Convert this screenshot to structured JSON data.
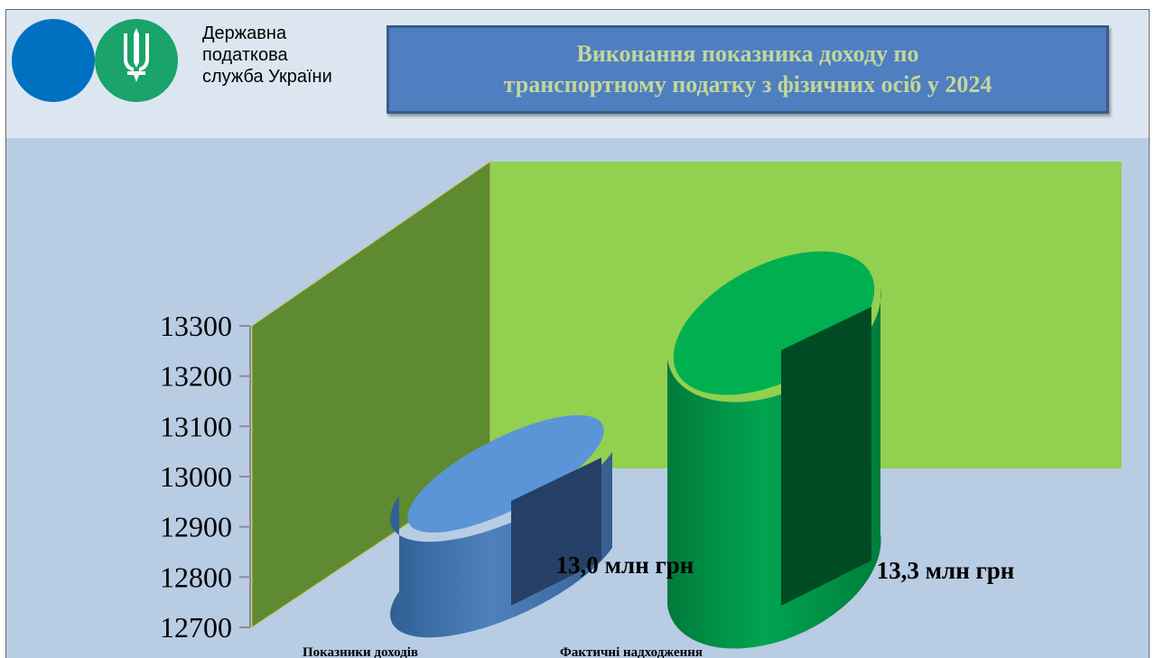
{
  "header": {
    "org_lines": [
      "Державна",
      "податкова",
      "служба України"
    ],
    "title_lines": [
      "Виконання показника доходу по",
      "транспортному податку з фізичних осіб у 2024"
    ],
    "title_color": "#c3d69b",
    "logo_colors": {
      "blue": "#0070c0",
      "green": "#1aa36a"
    },
    "logo_icon": "trident-icon"
  },
  "chart_data": {
    "type": "bar",
    "style": "3d-cylinder",
    "categories": [
      "Показники доходів",
      "Фактичні надходження"
    ],
    "values": [
      13000,
      13300
    ],
    "data_labels": [
      "13,0 млн грн",
      "13,3 млн грн"
    ],
    "yticks": [
      12700,
      12800,
      12900,
      13000,
      13100,
      13200,
      13300
    ],
    "ylim": [
      12700,
      13300
    ],
    "title": "",
    "xlabel": "",
    "ylabel": "",
    "colors": {
      "series": [
        "#4f81bd",
        "#00a550"
      ],
      "back_wall": "#92d050",
      "side_wall": "#5e8a31"
    }
  }
}
